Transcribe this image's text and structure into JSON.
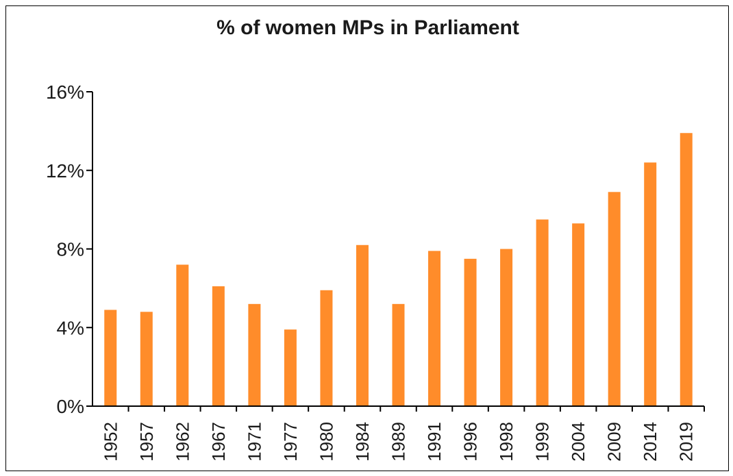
{
  "chart_data": {
    "type": "bar",
    "title": "% of women MPs in Parliament",
    "xlabel": "",
    "ylabel": "",
    "categories": [
      "1952",
      "1957",
      "1962",
      "1967",
      "1971",
      "1977",
      "1980",
      "1984",
      "1989",
      "1991",
      "1996",
      "1998",
      "1999",
      "2004",
      "2009",
      "2014",
      "2019"
    ],
    "values": [
      4.9,
      4.8,
      7.2,
      6.1,
      5.2,
      3.9,
      5.9,
      8.2,
      5.2,
      7.9,
      7.5,
      8.0,
      9.5,
      9.3,
      10.9,
      12.4,
      13.9
    ],
    "ylim": [
      0,
      16
    ],
    "yticks": [
      "0%",
      "4%",
      "8%",
      "12%",
      "16%"
    ],
    "ytick_values": [
      0,
      4,
      8,
      12,
      16
    ],
    "grid": false,
    "legend": "none",
    "colors": {
      "bar": "#FF8C2A",
      "axis": "#000000",
      "text": "#1a1a1a"
    }
  }
}
